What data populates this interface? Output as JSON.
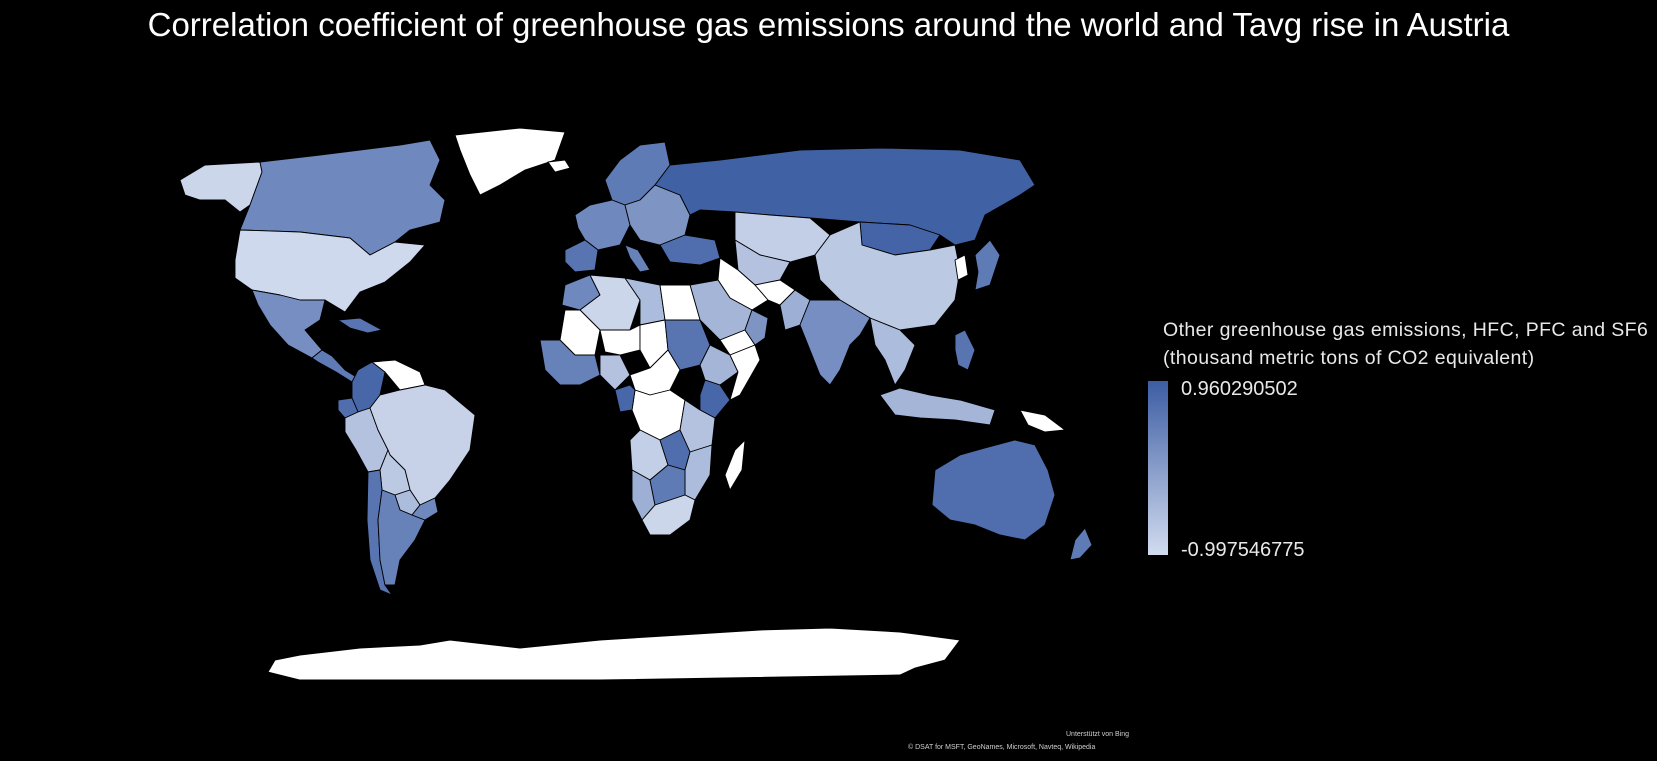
{
  "title": "Correlation coefficient of greenhouse gas emissions around the world and Tavg rise in Austria",
  "legend": {
    "title": "Other greenhouse gas emissions, HFC, PFC and SF6 (thousand metric tons of CO2 equivalent)",
    "max_label": "0.960290502",
    "min_label": "-0.997546775",
    "max_value": 0.960290502,
    "min_value": -0.997546775,
    "max_color": "#3c5da3",
    "min_color": "#d2dcef"
  },
  "no_data_color": "#ffffff",
  "background_color": "#000000",
  "attribution": {
    "powered_by": "Unterstützt von Bing",
    "copyright": "© DSAT for MSFT, GeoNames, Microsoft, Navteq, Wikipedia"
  },
  "regions": [
    {
      "name": "Alaska",
      "value": -0.9
    },
    {
      "name": "Canada",
      "value": 0.3
    },
    {
      "name": "Greenland",
      "value": null
    },
    {
      "name": "United States",
      "value": -0.95
    },
    {
      "name": "Mexico",
      "value": 0.2
    },
    {
      "name": "Central America",
      "value": 0.5
    },
    {
      "name": "Caribbean",
      "value": 0.6
    },
    {
      "name": "Colombia",
      "value": 0.8
    },
    {
      "name": "Venezuela",
      "value": null
    },
    {
      "name": "Ecuador",
      "value": 0.7
    },
    {
      "name": "Peru",
      "value": -0.6
    },
    {
      "name": "Brazil",
      "value": -0.85
    },
    {
      "name": "Bolivia",
      "value": -0.7
    },
    {
      "name": "Paraguay",
      "value": -0.5
    },
    {
      "name": "Chile",
      "value": 0.6
    },
    {
      "name": "Argentina",
      "value": 0.4
    },
    {
      "name": "Uruguay",
      "value": 0.3
    },
    {
      "name": "Iceland",
      "value": null
    },
    {
      "name": "Scandinavia",
      "value": 0.5
    },
    {
      "name": "Western Europe",
      "value": 0.3
    },
    {
      "name": "Iberia",
      "value": 0.6
    },
    {
      "name": "Italy",
      "value": 0.4
    },
    {
      "name": "Eastern Europe",
      "value": 0.1
    },
    {
      "name": "Turkey",
      "value": 0.7
    },
    {
      "name": "Russia",
      "value": 0.9
    },
    {
      "name": "Kazakhstan",
      "value": -0.8
    },
    {
      "name": "Mongolia",
      "value": 0.85
    },
    {
      "name": "China",
      "value": -0.7
    },
    {
      "name": "Japan",
      "value": 0.5
    },
    {
      "name": "Korea",
      "value": null
    },
    {
      "name": "Central Asia",
      "value": -0.6
    },
    {
      "name": "Iran",
      "value": null
    },
    {
      "name": "Afghanistan",
      "value": null
    },
    {
      "name": "Saudi Arabia",
      "value": -0.4
    },
    {
      "name": "Yemen",
      "value": null
    },
    {
      "name": "Oman",
      "value": 0.1
    },
    {
      "name": "Pakistan",
      "value": -0.3
    },
    {
      "name": "India",
      "value": 0.2
    },
    {
      "name": "Southeast Asia",
      "value": -0.5
    },
    {
      "name": "Philippines",
      "value": 0.6
    },
    {
      "name": "Indonesia",
      "value": -0.4
    },
    {
      "name": "Papua New Guinea",
      "value": null
    },
    {
      "name": "Australia",
      "value": 0.7
    },
    {
      "name": "New Zealand",
      "value": 0.5
    },
    {
      "name": "Morocco",
      "value": 0.3
    },
    {
      "name": "Algeria",
      "value": -0.9
    },
    {
      "name": "Libya",
      "value": -0.5
    },
    {
      "name": "Egypt",
      "value": null
    },
    {
      "name": "Mali",
      "value": null
    },
    {
      "name": "Niger",
      "value": null
    },
    {
      "name": "Chad",
      "value": null
    },
    {
      "name": "Sudan",
      "value": 0.6
    },
    {
      "name": "Ethiopia",
      "value": -0.4
    },
    {
      "name": "Somalia",
      "value": null
    },
    {
      "name": "West Africa",
      "value": 0.4
    },
    {
      "name": "Nigeria",
      "value": -0.6
    },
    {
      "name": "Central Africa",
      "value": null
    },
    {
      "name": "Congo",
      "value": null
    },
    {
      "name": "Gabon",
      "value": 0.8
    },
    {
      "name": "Kenya",
      "value": 0.8
    },
    {
      "name": "Tanzania",
      "value": -0.6
    },
    {
      "name": "Angola",
      "value": -0.8
    },
    {
      "name": "Zambia",
      "value": 0.7
    },
    {
      "name": "Mozambique",
      "value": -0.5
    },
    {
      "name": "Namibia",
      "value": -0.3
    },
    {
      "name": "Botswana",
      "value": 0.5
    },
    {
      "name": "South Africa",
      "value": -0.9
    },
    {
      "name": "Madagascar",
      "value": null
    },
    {
      "name": "Antarctica",
      "value": null
    }
  ]
}
